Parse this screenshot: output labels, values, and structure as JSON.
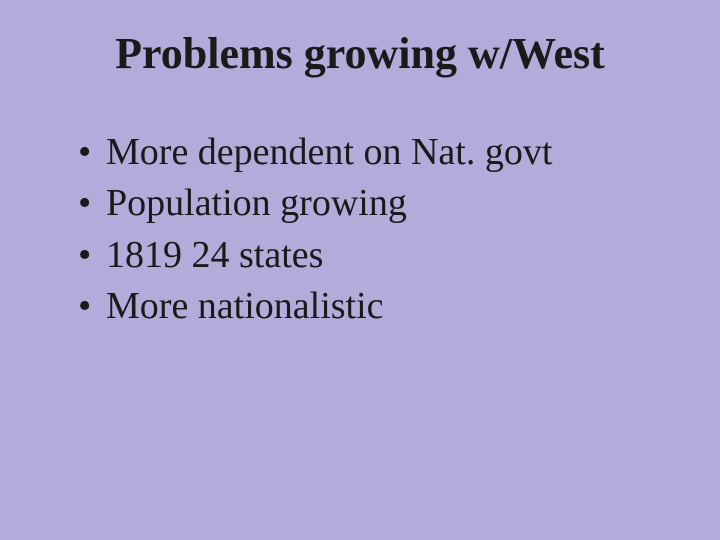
{
  "slide": {
    "title": "Problems growing w/West",
    "bullets": [
      "More dependent on Nat. govt",
      "Population growing",
      "1819  24 states",
      "More nationalistic"
    ],
    "background_color": "#b4abdb",
    "title_fontsize": 44,
    "bullet_fontsize": 38,
    "text_color": "#1a1a1a",
    "font_family": "Times New Roman"
  }
}
